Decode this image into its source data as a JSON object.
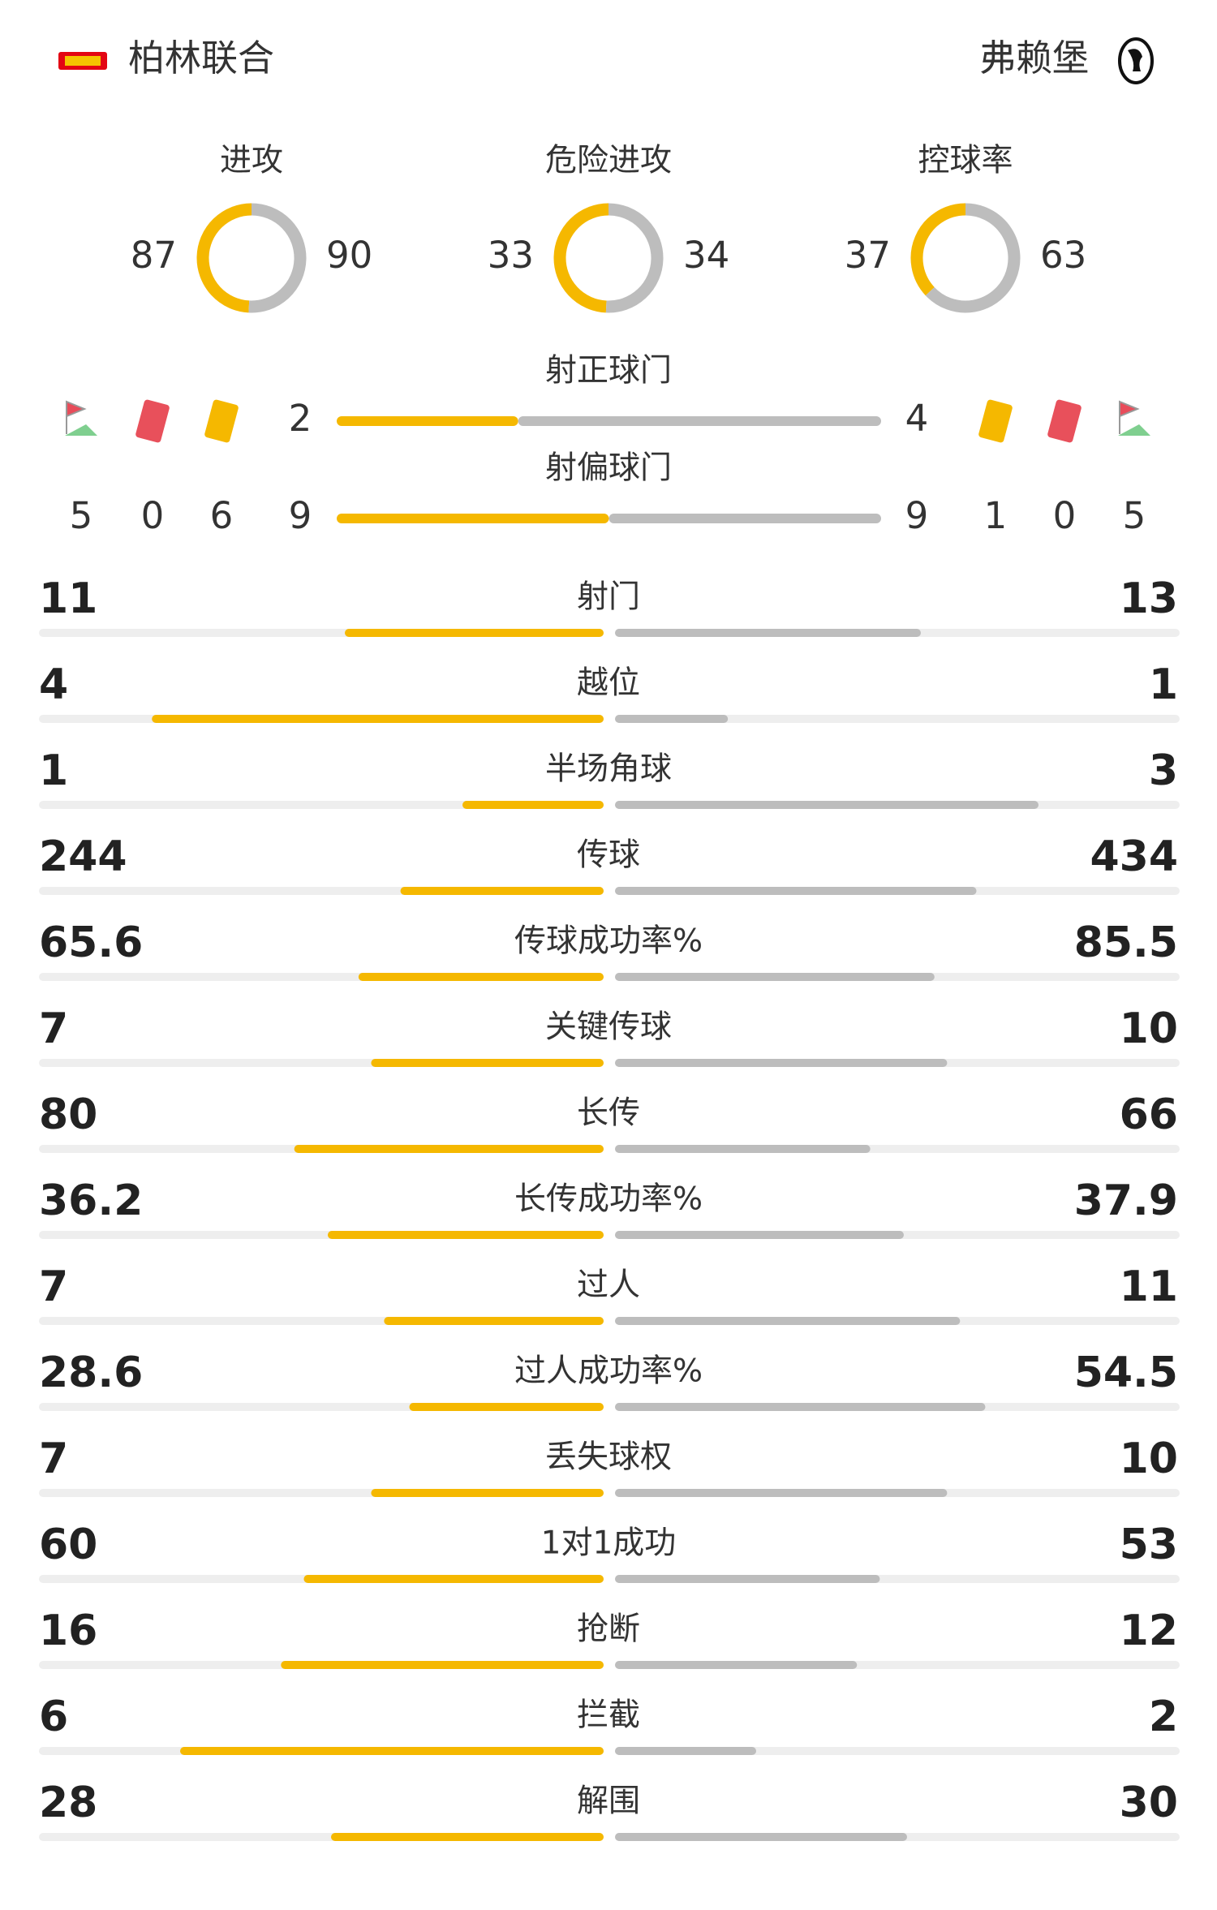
{
  "header": {
    "home": "柏林联合",
    "away": "弗赖堡"
  },
  "donuts": [
    {
      "label": "进攻",
      "home": 87,
      "away": 90
    },
    {
      "label": "危险进攻",
      "home": 33,
      "away": 34
    },
    {
      "label": "控球率",
      "home": 37,
      "away": 63
    }
  ],
  "shots": [
    {
      "label": "射正球门",
      "home": 2,
      "away": 4
    },
    {
      "label": "射偏球门",
      "home": 9,
      "away": 9
    }
  ],
  "cards": {
    "home": {
      "corners": 5,
      "red": 0,
      "yellow": 6
    },
    "away": {
      "yellow": 1,
      "red": 0,
      "corners": 5
    }
  },
  "stats": [
    {
      "label": "射门",
      "home": 11,
      "away": 13
    },
    {
      "label": "越位",
      "home": 4,
      "away": 1
    },
    {
      "label": "半场角球",
      "home": 1,
      "away": 3
    },
    {
      "label": "传球",
      "home": 244,
      "away": 434
    },
    {
      "label": "传球成功率%",
      "home": 65.6,
      "away": 85.5
    },
    {
      "label": "关键传球",
      "home": 7,
      "away": 10
    },
    {
      "label": "长传",
      "home": 80,
      "away": 66
    },
    {
      "label": "长传成功率%",
      "home": 36.2,
      "away": 37.9
    },
    {
      "label": "过人",
      "home": 7,
      "away": 11
    },
    {
      "label": "过人成功率%",
      "home": 28.6,
      "away": 54.5
    },
    {
      "label": "丢失球权",
      "home": 7,
      "away": 10
    },
    {
      "label": "1对1成功",
      "home": 60,
      "away": 53
    },
    {
      "label": "抢断",
      "home": 16,
      "away": 12
    },
    {
      "label": "拦截",
      "home": 6,
      "away": 2
    },
    {
      "label": "解围",
      "home": 28,
      "away": 30
    }
  ]
}
